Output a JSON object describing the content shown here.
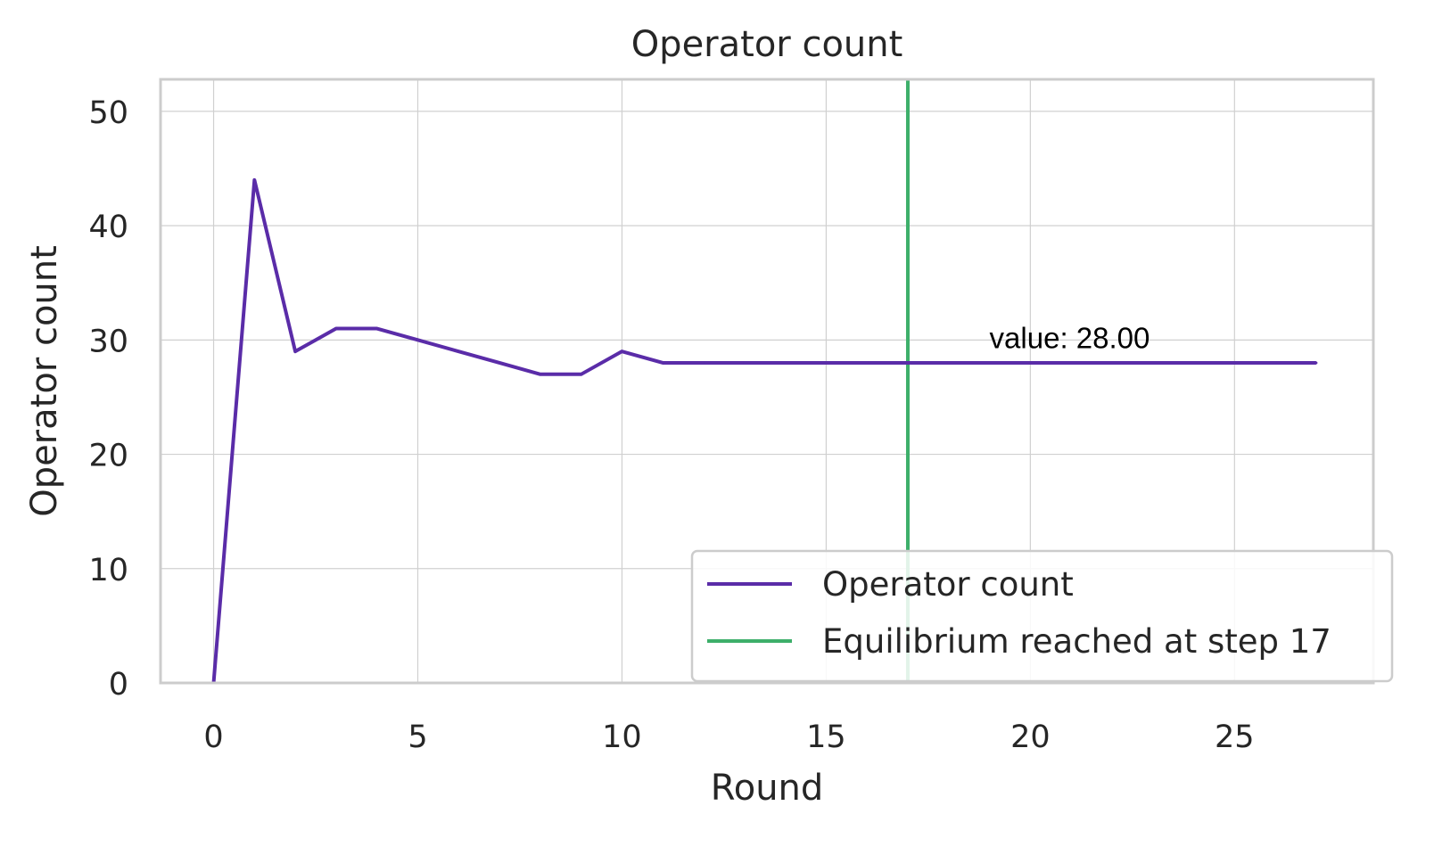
{
  "chart_data": {
    "type": "line",
    "title": "Operator count",
    "xlabel": "Round",
    "ylabel": "Operator count",
    "xlim": [
      -1.3,
      28.4
    ],
    "ylim": [
      0,
      52.8
    ],
    "xticks": [
      0,
      5,
      10,
      15,
      20,
      25
    ],
    "yticks": [
      0,
      10,
      20,
      30,
      40,
      50
    ],
    "grid": true,
    "legend_position": "lower-right",
    "series": [
      {
        "name": "Operator count",
        "color": "#5a2ca8",
        "x": [
          0,
          1,
          2,
          3,
          4,
          5,
          6,
          7,
          8,
          9,
          10,
          11,
          12,
          13,
          14,
          15,
          16,
          17,
          18,
          19,
          20,
          21,
          22,
          23,
          24,
          25,
          26,
          27
        ],
        "values": [
          0,
          44,
          29,
          31,
          31,
          30,
          29,
          28,
          27,
          27,
          29,
          28,
          28,
          28,
          28,
          28,
          28,
          28,
          28,
          28,
          28,
          28,
          28,
          28,
          28,
          28,
          28,
          28
        ]
      }
    ],
    "vlines": [
      {
        "name": "Equilibrium reached at step 17",
        "x": 17,
        "color": "#3daf6a"
      }
    ],
    "annotations": [
      {
        "text": "value: 28.00",
        "x": 19,
        "y": 29.3
      }
    ]
  }
}
